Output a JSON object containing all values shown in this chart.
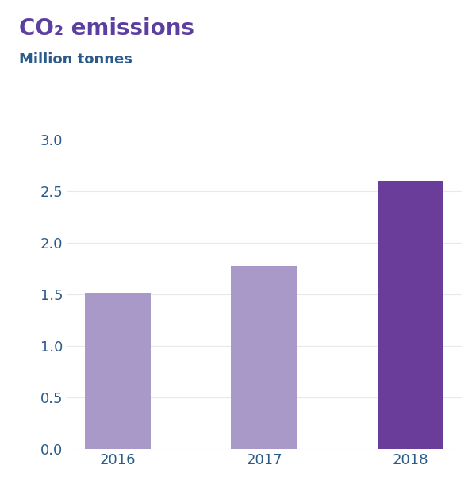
{
  "title": "CO₂ emissions",
  "subtitle": "Million tonnes",
  "categories": [
    "2016",
    "2017",
    "2018"
  ],
  "values": [
    1.52,
    1.78,
    2.6
  ],
  "bar_colors": [
    "#a899c8",
    "#a899c8",
    "#6a3d9a"
  ],
  "title_color": "#5b3fa0",
  "subtitle_color": "#2a5b8a",
  "tick_label_color": "#2a5b8a",
  "ylim": [
    0,
    3.0
  ],
  "yticks": [
    0.0,
    0.5,
    1.0,
    1.5,
    2.0,
    2.5,
    3.0
  ],
  "background_color": "#ffffff",
  "bar_width": 0.45,
  "title_fontsize": 20,
  "subtitle_fontsize": 13,
  "tick_fontsize": 13,
  "xlabel_fontsize": 13
}
